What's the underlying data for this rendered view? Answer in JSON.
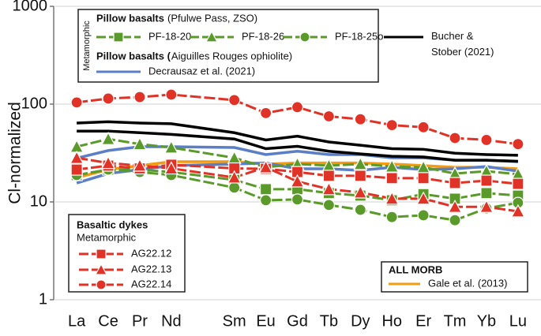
{
  "chart_data": {
    "type": "line",
    "y_label": "Cl-normalized",
    "log_y": true,
    "grid": true,
    "ylim": [
      1,
      1000
    ],
    "yticks": [
      1,
      10,
      100,
      1000
    ],
    "xlim": [
      56.27,
      71.73
    ],
    "xticks": [
      {
        "value": 57,
        "label": "La"
      },
      {
        "value": 58,
        "label": "Ce"
      },
      {
        "value": 59,
        "label": "Pr"
      },
      {
        "value": 60,
        "label": "Nd"
      },
      {
        "value": 62,
        "label": "Sm"
      },
      {
        "value": 63,
        "label": "Eu"
      },
      {
        "value": 64,
        "label": "Gd"
      },
      {
        "value": 65,
        "label": "Tb"
      },
      {
        "value": 66,
        "label": "Dy"
      },
      {
        "value": 67,
        "label": "Ho"
      },
      {
        "value": 68,
        "label": "Er"
      },
      {
        "value": 69,
        "label": "Tm"
      },
      {
        "value": 70,
        "label": "Yb"
      },
      {
        "value": 71,
        "label": "Lu"
      }
    ],
    "x": [
      57,
      58,
      59,
      60,
      62,
      63,
      64,
      65,
      66,
      67,
      68,
      69,
      70,
      71
    ],
    "annotations": [
      "Pillow basalts",
      "(Pfulwe Pass, ZSO)",
      "Metamorphic",
      "Pillow basalts (",
      "Aiguilles Rouges ophiolite)",
      "Basaltic dykes",
      "Metamorphic",
      "ALL MORB"
    ],
    "series": [
      {
        "name": "Gale et al. (2013)",
        "color": "#f39c12",
        "marker": "none",
        "values": [
          17.7,
          21.4,
          23.5,
          25.8,
          25.8,
          24.4,
          25,
          25,
          25,
          24.4,
          23.5,
          22.6,
          22.6,
          21.8
        ]
      },
      {
        "name": "Decrausaz et al. (2021)",
        "color": "#5b7fc7",
        "marker": "none",
        "values": [
          28,
          33.5,
          36.7,
          36.7,
          36,
          30.5,
          33,
          30.5,
          30.5,
          28.2,
          28.2,
          26.7,
          26.7,
          25.8
        ]
      },
      {
        "color": "#5b7fc7",
        "marker": "none",
        "values": [
          15.6,
          19.5,
          21.4,
          23.5,
          24.4,
          25,
          21.8,
          21.8,
          21,
          22.6,
          21.4,
          21.8,
          23,
          20.6
        ]
      },
      {
        "name": "Bucher & Stober (2021)",
        "color": "#000000",
        "marker": "none",
        "values": [
          64,
          66,
          64,
          63,
          51,
          43,
          47,
          41,
          38,
          35,
          34.5,
          31.5,
          30.5,
          30
        ]
      },
      {
        "color": "#000000",
        "marker": "none",
        "values": [
          53,
          53,
          51,
          49,
          44,
          35,
          37,
          33,
          31,
          29.3,
          28.8,
          26.7,
          26.7,
          26
        ]
      },
      {
        "name": "PF-18-20",
        "color": "#5a9a2a",
        "marker": "square",
        "dashed": true,
        "values": [
          18.8,
          21.4,
          21.4,
          20.2,
          16.8,
          13.5,
          13.5,
          12.3,
          11.6,
          10.4,
          12,
          10.8,
          12.3,
          11.6
        ]
      },
      {
        "name": "PF-18-26",
        "color": "#5a9a2a",
        "marker": "triangle",
        "dashed": true,
        "values": [
          36.7,
          44,
          39,
          36,
          28.2,
          22.6,
          24.4,
          23.5,
          24.4,
          23,
          22.6,
          19.5,
          20.6,
          19.2
        ]
      },
      {
        "name": "PF-18-25o",
        "color": "#5a9a2a",
        "marker": "circle",
        "dashed": true,
        "values": [
          18.8,
          21.4,
          20.2,
          18.8,
          14,
          10.4,
          10.6,
          9.3,
          8.3,
          7,
          7.3,
          6.5,
          8.6,
          9.8
        ]
      },
      {
        "name": "AG22.12",
        "color": "#e03226",
        "marker": "square",
        "dashed": true,
        "values": [
          21.4,
          23.5,
          22,
          24,
          22,
          21.8,
          20.2,
          18.5,
          18.5,
          17.5,
          17.5,
          15.6,
          16.5,
          15.3
        ]
      },
      {
        "name": "AG22.13",
        "color": "#e03226",
        "marker": "triangle",
        "dashed": true,
        "values": [
          28.2,
          25,
          23.5,
          22,
          17.8,
          22.6,
          16.2,
          13.5,
          12.5,
          10.8,
          10.8,
          8.9,
          8.9,
          8
        ]
      },
      {
        "name": "AG22.14",
        "color": "#e03226",
        "marker": "circle",
        "dashed": true,
        "values": [
          104,
          114,
          118,
          125,
          110,
          81,
          93,
          75,
          70,
          61,
          58,
          45,
          43,
          39
        ]
      }
    ]
  }
}
